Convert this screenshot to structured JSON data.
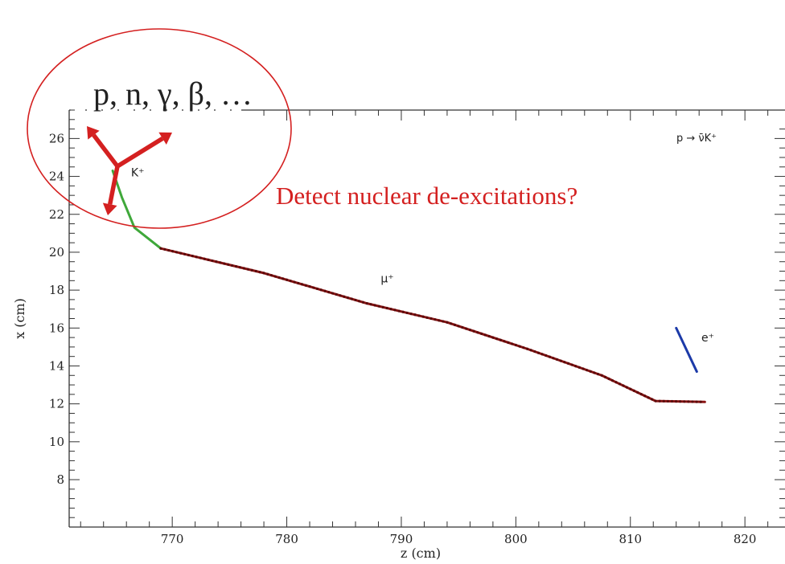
{
  "colors": {
    "kaon": "#3fa83a",
    "muon": "#8b1414",
    "positron": "#1c3aa8",
    "annotation": "#d42020",
    "axis": "#333333"
  },
  "chart_data": {
    "type": "line",
    "title": "",
    "reaction": "p → ν̄K⁺",
    "xlabel": "z (cm)",
    "ylabel": "x (cm)",
    "xlim": [
      761,
      823.5
    ],
    "ylim": [
      5.5,
      27.5
    ],
    "xticks": [
      770,
      780,
      790,
      800,
      810,
      820
    ],
    "yticks": [
      8,
      10,
      12,
      14,
      16,
      18,
      20,
      22,
      24,
      26
    ],
    "grid": false,
    "series": [
      {
        "name": "K+",
        "label": "K⁺",
        "color": "kaon",
        "x": [
          764.8,
          765.6,
          766.7,
          769.0
        ],
        "y": [
          24.3,
          22.9,
          21.3,
          20.2
        ]
      },
      {
        "name": "μ+",
        "label": "μ⁺",
        "color": "muon",
        "x": [
          769.0,
          778.0,
          787.0,
          794.0,
          801.0,
          807.5,
          812.2,
          816.5
        ],
        "y": [
          20.2,
          18.9,
          17.3,
          16.3,
          14.9,
          13.5,
          12.15,
          12.1
        ]
      },
      {
        "name": "e+",
        "label": "e⁺",
        "color": "positron",
        "x": [
          814.0,
          815.8
        ],
        "y": [
          16.0,
          13.7
        ]
      }
    ]
  },
  "annotation": {
    "particles_text": "p, n, γ, β, …",
    "question_text": "Detect nuclear de-excitations?"
  }
}
